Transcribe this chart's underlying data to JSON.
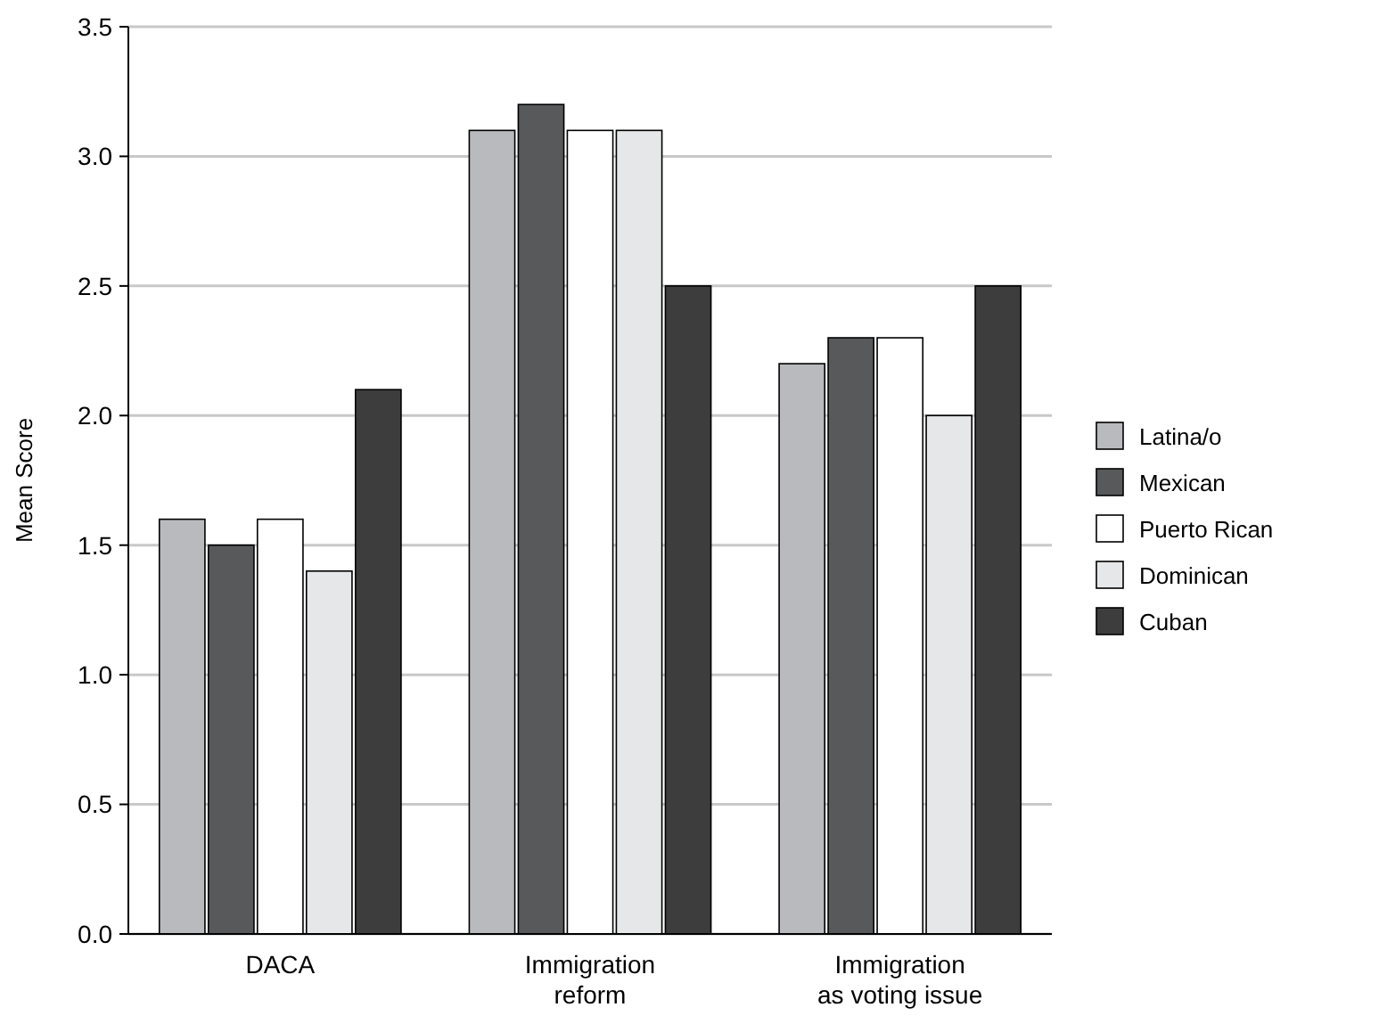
{
  "chart_data": {
    "type": "bar",
    "ylabel": "Mean Score",
    "categories": [
      "DACA",
      "Immigration\nreform",
      "Immigration\nas voting issue"
    ],
    "series": [
      {
        "name": "Latina/o",
        "color": "#b9babd",
        "values": [
          1.6,
          3.1,
          2.2
        ]
      },
      {
        "name": "Mexican",
        "color": "#58595b",
        "values": [
          1.5,
          3.2,
          2.3
        ]
      },
      {
        "name": "Puerto Rican",
        "color": "#ffffff",
        "values": [
          1.6,
          3.1,
          2.3
        ]
      },
      {
        "name": "Dominican",
        "color": "#e6e7e8",
        "values": [
          1.4,
          3.1,
          2.0
        ]
      },
      {
        "name": "Cuban",
        "color": "#3d3d3d",
        "values": [
          2.1,
          2.5,
          2.5
        ]
      }
    ],
    "ylim": [
      0,
      3.5
    ],
    "yticks": [
      {
        "value": 0,
        "label": "0.0"
      },
      {
        "value": 0.5,
        "label": "0.5"
      },
      {
        "value": 1,
        "label": "1.0"
      },
      {
        "value": 1.5,
        "label": "1.5"
      },
      {
        "value": 2,
        "label": "2.0"
      },
      {
        "value": 2.5,
        "label": "2.5"
      },
      {
        "value": 3,
        "label": "3.0"
      },
      {
        "value": 3.5,
        "label": "3.5"
      }
    ],
    "grid": "y",
    "legend": "right"
  }
}
